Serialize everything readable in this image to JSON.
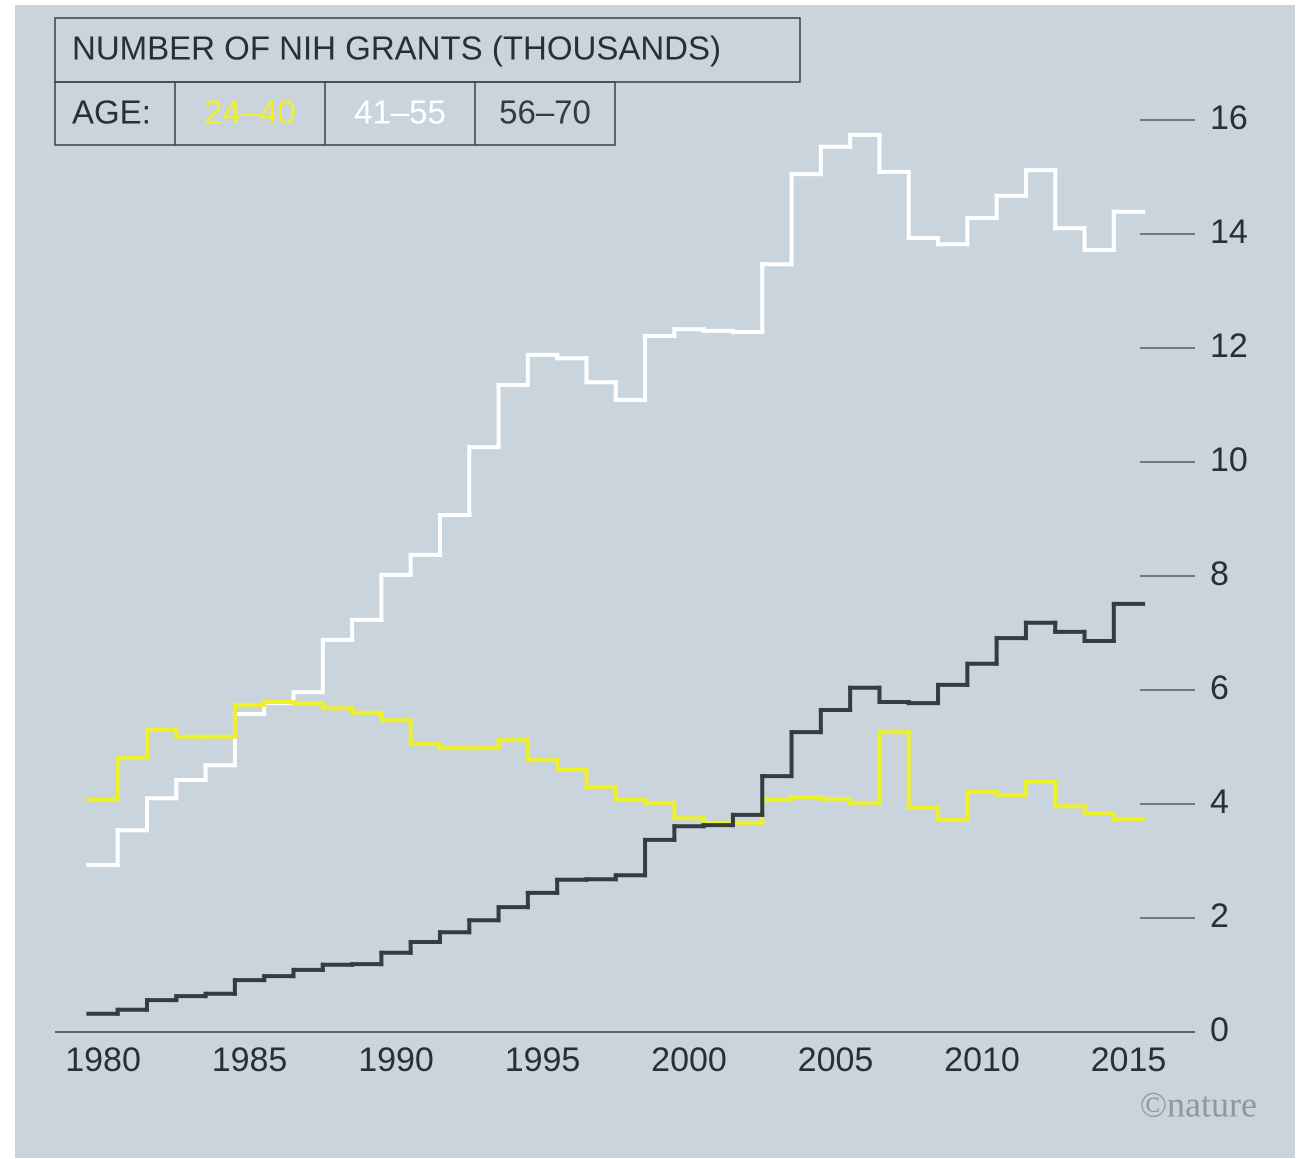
{
  "chart_data": {
    "type": "step",
    "title": "NUMBER OF NIH GRANTS (THOUSANDS)",
    "legend_title": "AGE:",
    "credit": "©nature",
    "x": [
      1980,
      1981,
      1982,
      1983,
      1984,
      1985,
      1986,
      1987,
      1988,
      1989,
      1990,
      1991,
      1992,
      1993,
      1994,
      1995,
      1996,
      1997,
      1998,
      1999,
      2000,
      2001,
      2002,
      2003,
      2004,
      2005,
      2006,
      2007,
      2008,
      2009,
      2010,
      2011,
      2012,
      2013,
      2014,
      2015
    ],
    "series": [
      {
        "name": "24–40",
        "color": "#eef02c",
        "values": [
          4.07,
          4.81,
          5.3,
          5.18,
          5.18,
          5.74,
          5.79,
          5.77,
          5.68,
          5.6,
          5.47,
          5.05,
          4.98,
          4.98,
          5.12,
          4.77,
          4.6,
          4.3,
          4.07,
          4.02,
          3.75,
          3.67,
          3.67,
          4.07,
          4.12,
          4.09,
          4.02,
          5.26,
          3.93,
          3.72,
          4.21,
          4.16,
          4.39,
          3.96,
          3.84,
          3.74
        ]
      },
      {
        "name": "41–55",
        "color": "#ffffff",
        "values": [
          2.93,
          3.54,
          4.1,
          4.42,
          4.68,
          5.58,
          5.77,
          5.96,
          6.88,
          7.23,
          8.02,
          8.37,
          9.07,
          10.26,
          11.35,
          11.88,
          11.82,
          11.4,
          11.09,
          12.21,
          12.33,
          12.3,
          12.28,
          13.47,
          15.05,
          15.53,
          15.74,
          15.09,
          13.93,
          13.82,
          14.28,
          14.67,
          15.12,
          14.1,
          13.72,
          14.39
        ]
      },
      {
        "name": "56–70",
        "color": "#353c40",
        "values": [
          0.32,
          0.39,
          0.56,
          0.63,
          0.67,
          0.91,
          0.98,
          1.09,
          1.18,
          1.19,
          1.39,
          1.58,
          1.75,
          1.96,
          2.19,
          2.44,
          2.67,
          2.68,
          2.75,
          3.37,
          3.61,
          3.63,
          3.81,
          4.49,
          5.26,
          5.65,
          6.04,
          5.79,
          5.77,
          6.09,
          6.46,
          6.91,
          7.18,
          7.02,
          6.86,
          7.51
        ]
      }
    ],
    "xlim": [
      1978.36,
      2017.1
    ],
    "xticks": [
      1980,
      1985,
      1990,
      1995,
      2000,
      2005,
      2010,
      2015
    ],
    "ylim": [
      0,
      16
    ],
    "yticks": [
      0,
      2,
      4,
      6,
      8,
      10,
      12,
      14,
      16
    ],
    "y_axis_side": "right"
  }
}
